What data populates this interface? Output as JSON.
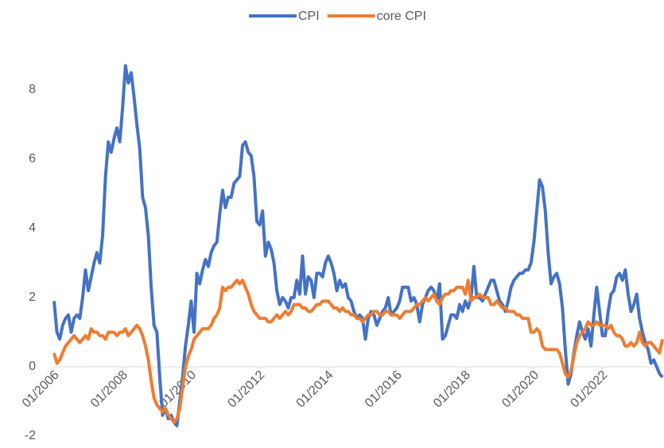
{
  "chart_data": {
    "type": "line",
    "categories": [
      "01/2006",
      null,
      null,
      null,
      null,
      null,
      null,
      null,
      null,
      null,
      null,
      null,
      null,
      null,
      null,
      null,
      null,
      null,
      null,
      null,
      null,
      null,
      null,
      null,
      "01/2008",
      null,
      null,
      null,
      null,
      null,
      null,
      null,
      null,
      null,
      null,
      null,
      null,
      null,
      null,
      null,
      null,
      null,
      null,
      null,
      null,
      null,
      null,
      null,
      "01/2010",
      null,
      null,
      null,
      null,
      null,
      null,
      null,
      null,
      null,
      null,
      null,
      null,
      null,
      null,
      null,
      null,
      null,
      null,
      null,
      null,
      null,
      null,
      null,
      "01/2012",
      null,
      null,
      null,
      null,
      null,
      null,
      null,
      null,
      null,
      null,
      null,
      null,
      null,
      null,
      null,
      null,
      null,
      null,
      null,
      null,
      null,
      null,
      null,
      "01/2014",
      null,
      null,
      null,
      null,
      null,
      null,
      null,
      null,
      null,
      null,
      null,
      null,
      null,
      null,
      null,
      null,
      null,
      null,
      null,
      null,
      null,
      null,
      null,
      "01/2016",
      null,
      null,
      null,
      null,
      null,
      null,
      null,
      null,
      null,
      null,
      null,
      null,
      null,
      null,
      null,
      null,
      null,
      null,
      null,
      null,
      null,
      null,
      null,
      "01/2018",
      null,
      null,
      null,
      null,
      null,
      null,
      null,
      null,
      null,
      null,
      null,
      null,
      null,
      null,
      null,
      null,
      null,
      null,
      null,
      null,
      null,
      null,
      null,
      "01/2020",
      null,
      null,
      null,
      null,
      null,
      null,
      null,
      null,
      null,
      null,
      null,
      null,
      null,
      null,
      null,
      null,
      null,
      null,
      null,
      null,
      null,
      null,
      null,
      "01/2022",
      null,
      null,
      null,
      null,
      null,
      null,
      null,
      null,
      null,
      null,
      null,
      null,
      null,
      null,
      null,
      null,
      null,
      null,
      null,
      null,
      null
    ],
    "series": [
      {
        "name": "CPI",
        "color": "#4472c4",
        "values": [
          1.9,
          1.0,
          0.8,
          1.2,
          1.4,
          1.5,
          1.0,
          1.4,
          1.5,
          1.4,
          2.0,
          2.8,
          2.2,
          2.6,
          3.0,
          3.3,
          3.0,
          3.8,
          5.5,
          6.5,
          6.2,
          6.6,
          6.9,
          6.5,
          7.5,
          8.7,
          8.2,
          8.5,
          7.8,
          7.0,
          6.3,
          4.9,
          4.6,
          3.8,
          2.3,
          1.2,
          1.0,
          -0.3,
          -1.4,
          -1.2,
          -1.5,
          -1.4,
          -1.6,
          -1.7,
          -1.0,
          -0.3,
          0.6,
          1.2,
          1.9,
          1.0,
          2.7,
          2.4,
          2.8,
          3.1,
          2.9,
          3.3,
          3.5,
          3.6,
          4.4,
          5.1,
          4.6,
          4.9,
          4.9,
          5.3,
          5.4,
          5.5,
          6.4,
          6.5,
          6.2,
          6.1,
          5.5,
          4.2,
          4.1,
          4.5,
          3.2,
          3.6,
          3.4,
          3.0,
          2.2,
          1.8,
          2.0,
          1.9,
          1.7,
          2.0,
          2.0,
          2.5,
          2.1,
          3.2,
          2.1,
          2.6,
          2.5,
          2.0,
          2.7,
          2.7,
          2.6,
          3.0,
          3.2,
          3.0,
          2.7,
          2.2,
          2.5,
          2.3,
          2.4,
          2.0,
          1.9,
          1.6,
          1.4,
          1.5,
          1.4,
          0.8,
          1.4,
          1.6,
          1.5,
          1.2,
          1.4,
          1.6,
          1.7,
          2.0,
          1.5,
          1.6,
          1.7,
          1.9,
          2.3,
          2.3,
          2.3,
          1.9,
          2.0,
          1.8,
          1.3,
          1.8,
          2.0,
          2.2,
          2.3,
          2.2,
          1.9,
          2.4,
          0.8,
          0.9,
          1.2,
          1.5,
          1.5,
          1.4,
          1.8,
          1.6,
          1.9,
          1.7,
          2.0,
          2.9,
          2.0,
          2.0,
          1.9,
          2.1,
          2.3,
          2.5,
          2.5,
          2.2,
          1.9,
          1.8,
          1.6,
          1.9,
          2.3,
          2.5,
          2.6,
          2.7,
          2.7,
          2.8,
          2.8,
          3.0,
          3.6,
          4.5,
          5.4,
          5.2,
          4.5,
          3.3,
          2.4,
          2.6,
          2.7,
          2.4,
          1.7,
          0.5,
          -0.5,
          -0.2,
          0.4,
          0.9,
          1.3,
          1.0,
          0.8,
          1.1,
          0.6,
          1.5,
          2.3,
          1.6,
          0.9,
          0.9,
          1.6,
          2.1,
          2.2,
          2.6,
          2.7,
          2.5,
          2.8,
          2.1,
          1.6,
          1.8,
          2.1,
          1.4,
          1.0,
          0.7,
          0.5,
          0.1,
          0.2,
          0.0,
          -0.2,
          -0.3
        ]
      },
      {
        "name": "core CPI",
        "color": "#ed7d31",
        "values": [
          0.4,
          0.1,
          0.2,
          0.4,
          0.6,
          0.7,
          0.8,
          0.9,
          0.8,
          0.7,
          0.8,
          0.9,
          0.8,
          1.1,
          1.0,
          1.0,
          0.9,
          0.9,
          0.8,
          1.0,
          1.0,
          1.0,
          0.9,
          1.0,
          1.0,
          1.1,
          0.9,
          1.0,
          1.1,
          1.2,
          1.1,
          0.9,
          0.6,
          0.2,
          -0.4,
          -0.9,
          -1.1,
          -1.2,
          -1.3,
          -1.2,
          -1.4,
          -1.5,
          -1.6,
          -1.5,
          -1.2,
          -0.6,
          0.0,
          0.3,
          0.5,
          0.8,
          0.9,
          1.0,
          1.1,
          1.1,
          1.1,
          1.2,
          1.4,
          1.5,
          1.7,
          2.3,
          2.2,
          2.3,
          2.3,
          2.4,
          2.5,
          2.4,
          2.5,
          2.3,
          2.1,
          1.8,
          1.6,
          1.5,
          1.4,
          1.4,
          1.4,
          1.3,
          1.3,
          1.4,
          1.5,
          1.4,
          1.5,
          1.6,
          1.5,
          1.6,
          1.8,
          1.8,
          1.8,
          1.7,
          1.7,
          1.6,
          1.6,
          1.7,
          1.8,
          1.8,
          1.9,
          1.9,
          1.9,
          1.8,
          1.7,
          1.7,
          1.6,
          1.7,
          1.6,
          1.6,
          1.5,
          1.5,
          1.4,
          1.4,
          1.3,
          1.4,
          1.5,
          1.5,
          1.6,
          1.6,
          1.5,
          1.5,
          1.6,
          1.6,
          1.5,
          1.5,
          1.5,
          1.4,
          1.5,
          1.6,
          1.6,
          1.6,
          1.7,
          1.8,
          1.8,
          1.9,
          2.0,
          1.9,
          2.0,
          2.1,
          1.9,
          1.8,
          2.0,
          2.1,
          2.1,
          2.2,
          2.2,
          2.3,
          2.3,
          2.3,
          2.1,
          2.5,
          1.9,
          2.0,
          2.0,
          2.1,
          2.0,
          2.0,
          2.0,
          1.8,
          1.8,
          1.9,
          1.8,
          1.7,
          1.7,
          1.6,
          1.6,
          1.6,
          1.5,
          1.5,
          1.4,
          1.4,
          1.4,
          1.0,
          1.0,
          1.1,
          1.0,
          0.6,
          0.5,
          0.5,
          0.5,
          0.5,
          0.5,
          0.4,
          0.1,
          -0.2,
          -0.3,
          -0.1,
          0.3,
          0.7,
          0.9,
          1.0,
          1.1,
          1.3,
          1.2,
          1.2,
          1.3,
          1.2,
          1.2,
          1.2,
          1.1,
          1.2,
          1.0,
          0.9,
          0.9,
          0.8,
          0.6,
          0.6,
          0.7,
          0.6,
          0.7,
          1.0,
          0.7,
          0.6,
          0.7,
          0.7,
          0.6,
          0.5,
          0.4,
          0.8
        ]
      }
    ],
    "ylim": [
      -2,
      9
    ],
    "yticks": [
      -2,
      0,
      2,
      4,
      6,
      8
    ],
    "legend": "top",
    "grid": false
  }
}
